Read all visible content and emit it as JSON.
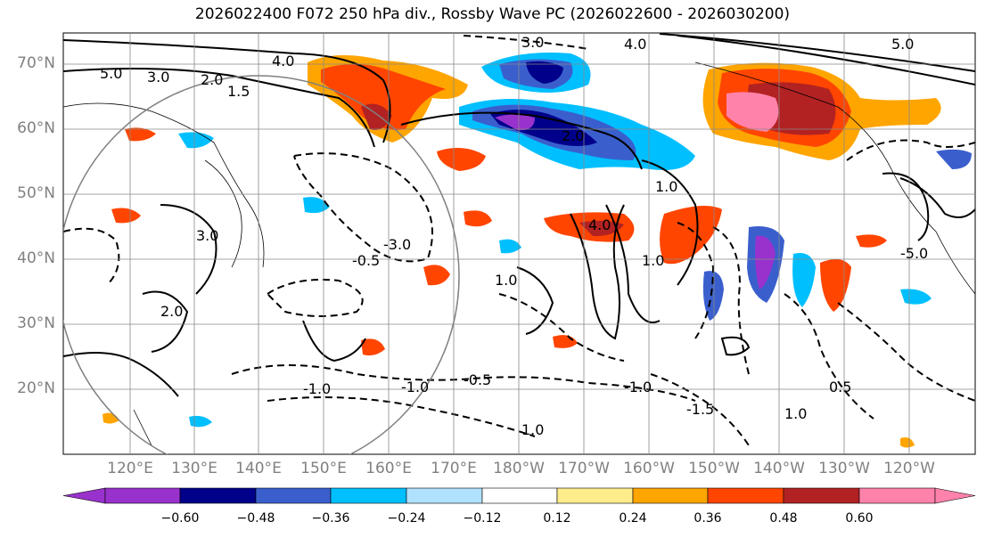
{
  "title": "2026022400 F072 250 hPa div., Rossby Wave PC (2026022600 - 2026030200)",
  "lat_labels": [
    "70°N",
    "60°N",
    "50°N",
    "40°N",
    "30°N",
    "20°N"
  ],
  "lon_labels": [
    "120°E",
    "130°E",
    "140°E",
    "150°E",
    "160°E",
    "170°E",
    "180°W",
    "170°W",
    "160°W",
    "150°W",
    "140°W",
    "130°W",
    "120°W"
  ],
  "contour_labels": [
    "5.0",
    "3.0",
    "2.0",
    "1.5",
    "4.0",
    "1.0",
    "0.5",
    "-0.5",
    "-1.0",
    "-1.5",
    "-3.0",
    "-4.0",
    "-5.0"
  ],
  "colorbar": {
    "ticks": [
      "−0.60",
      "−0.48",
      "−0.36",
      "−0.24",
      "−0.12",
      "0.12",
      "0.24",
      "0.36",
      "0.48",
      "0.60"
    ],
    "colors": [
      "#9932cc",
      "#00008b",
      "#3a5fcd",
      "#00bfff",
      "#b0e2ff",
      "#ffffff",
      "#ffec8b",
      "#ffa500",
      "#ff4500",
      "#b22222",
      "#ff82ab"
    ]
  }
}
